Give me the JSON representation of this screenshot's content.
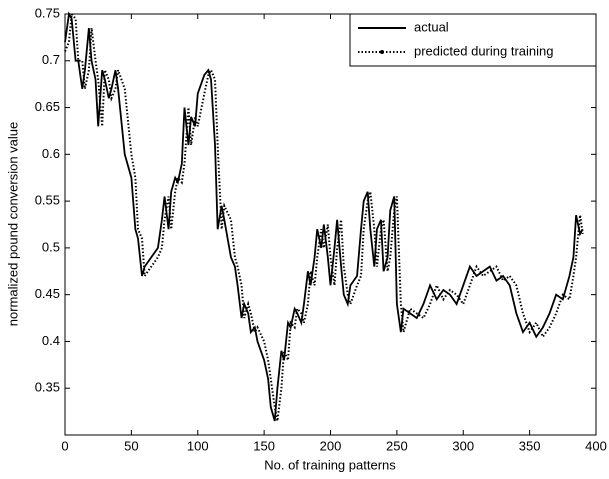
{
  "chart_data": {
    "type": "line",
    "xlabel": "No. of training patterns",
    "ylabel": "normalized pound conversion value",
    "xlim": [
      0,
      400
    ],
    "xticks": [
      0,
      50,
      100,
      150,
      200,
      250,
      300,
      350,
      400
    ],
    "ylim": [
      0.3,
      0.75
    ],
    "yticks": [
      0.35,
      0.4,
      0.45,
      0.5,
      0.55,
      0.6,
      0.65,
      0.7,
      0.75
    ],
    "legend": "upper right",
    "x": [
      0,
      3,
      5,
      8,
      10,
      13,
      15,
      18,
      20,
      23,
      25,
      28,
      30,
      33,
      35,
      38,
      40,
      45,
      50,
      53,
      55,
      58,
      60,
      65,
      70,
      73,
      75,
      78,
      80,
      83,
      85,
      88,
      90,
      93,
      95,
      98,
      100,
      105,
      108,
      110,
      113,
      115,
      118,
      120,
      125,
      128,
      130,
      133,
      135,
      138,
      140,
      143,
      145,
      150,
      153,
      155,
      158,
      160,
      163,
      165,
      168,
      170,
      173,
      175,
      178,
      180,
      183,
      185,
      188,
      190,
      193,
      195,
      198,
      200,
      203,
      205,
      208,
      210,
      213,
      215,
      220,
      223,
      225,
      228,
      230,
      233,
      235,
      238,
      240,
      243,
      245,
      248,
      250,
      253,
      255,
      260,
      265,
      270,
      275,
      280,
      285,
      290,
      295,
      300,
      305,
      310,
      315,
      320,
      325,
      330,
      335,
      340,
      345,
      350,
      355,
      360,
      365,
      370,
      375,
      380,
      383,
      385,
      388,
      390
    ],
    "series": [
      {
        "name": "actual",
        "color": "#000000",
        "style": "solid",
        "values": [
          0.72,
          0.75,
          0.745,
          0.7,
          0.7,
          0.67,
          0.69,
          0.735,
          0.7,
          0.68,
          0.63,
          0.69,
          0.68,
          0.66,
          0.67,
          0.69,
          0.67,
          0.6,
          0.575,
          0.52,
          0.51,
          0.47,
          0.48,
          0.49,
          0.5,
          0.53,
          0.555,
          0.52,
          0.56,
          0.575,
          0.57,
          0.59,
          0.65,
          0.61,
          0.64,
          0.63,
          0.665,
          0.685,
          0.69,
          0.68,
          0.61,
          0.52,
          0.545,
          0.53,
          0.49,
          0.48,
          0.46,
          0.425,
          0.44,
          0.43,
          0.41,
          0.415,
          0.4,
          0.38,
          0.36,
          0.33,
          0.315,
          0.35,
          0.39,
          0.38,
          0.42,
          0.415,
          0.435,
          0.43,
          0.42,
          0.44,
          0.475,
          0.46,
          0.49,
          0.52,
          0.5,
          0.525,
          0.49,
          0.46,
          0.5,
          0.53,
          0.48,
          0.45,
          0.44,
          0.46,
          0.47,
          0.52,
          0.55,
          0.56,
          0.52,
          0.48,
          0.52,
          0.53,
          0.475,
          0.49,
          0.54,
          0.555,
          0.44,
          0.41,
          0.435,
          0.43,
          0.425,
          0.44,
          0.46,
          0.445,
          0.455,
          0.45,
          0.44,
          0.46,
          0.48,
          0.47,
          0.475,
          0.48,
          0.465,
          0.47,
          0.46,
          0.43,
          0.41,
          0.42,
          0.405,
          0.415,
          0.43,
          0.45,
          0.445,
          0.47,
          0.49,
          0.535,
          0.515,
          0.52
        ]
      },
      {
        "name": "predicted during training",
        "color": "#000000",
        "style": "dotted",
        "values": [
          0.71,
          0.72,
          0.75,
          0.745,
          0.7,
          0.7,
          0.67,
          0.69,
          0.735,
          0.7,
          0.68,
          0.63,
          0.69,
          0.68,
          0.66,
          0.67,
          0.69,
          0.67,
          0.6,
          0.575,
          0.52,
          0.51,
          0.47,
          0.48,
          0.49,
          0.5,
          0.53,
          0.555,
          0.52,
          0.56,
          0.575,
          0.57,
          0.59,
          0.65,
          0.61,
          0.64,
          0.63,
          0.665,
          0.685,
          0.69,
          0.68,
          0.61,
          0.52,
          0.545,
          0.53,
          0.49,
          0.48,
          0.46,
          0.425,
          0.44,
          0.43,
          0.41,
          0.415,
          0.4,
          0.38,
          0.36,
          0.33,
          0.315,
          0.35,
          0.39,
          0.38,
          0.42,
          0.415,
          0.435,
          0.43,
          0.42,
          0.44,
          0.475,
          0.46,
          0.49,
          0.52,
          0.5,
          0.525,
          0.49,
          0.46,
          0.5,
          0.53,
          0.48,
          0.45,
          0.44,
          0.46,
          0.47,
          0.52,
          0.55,
          0.56,
          0.52,
          0.48,
          0.52,
          0.53,
          0.475,
          0.49,
          0.54,
          0.555,
          0.44,
          0.41,
          0.435,
          0.43,
          0.425,
          0.44,
          0.46,
          0.445,
          0.455,
          0.45,
          0.44,
          0.46,
          0.48,
          0.47,
          0.475,
          0.48,
          0.465,
          0.47,
          0.46,
          0.43,
          0.41,
          0.42,
          0.405,
          0.415,
          0.43,
          0.45,
          0.445,
          0.47,
          0.49,
          0.535,
          0.515
        ]
      }
    ]
  }
}
